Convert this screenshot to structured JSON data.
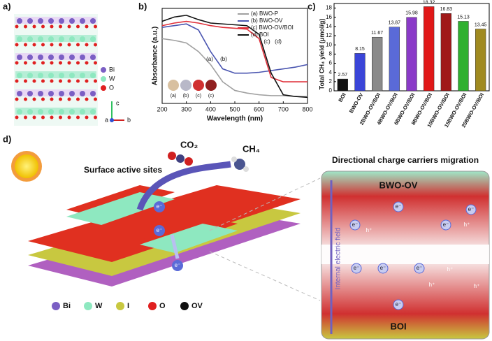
{
  "panel_labels": [
    "a)",
    "b)",
    "c)",
    "d)"
  ],
  "chart_data": [
    {
      "type": "line",
      "xlabel": "Wavelength (nm)",
      "ylabel": "Absorbance (a.u.)",
      "x": [
        200,
        250,
        300,
        350,
        400,
        450,
        500,
        550,
        600,
        650,
        700,
        750,
        800
      ],
      "xlim": [
        200,
        800
      ],
      "xticks": [
        200,
        300,
        400,
        500,
        600,
        700,
        800
      ],
      "ylim": [
        0,
        1.1
      ],
      "legend": "upper right",
      "series": [
        {
          "name": "(a) BWO-P",
          "color": "#a0a0a0",
          "values": [
            0.75,
            0.73,
            0.7,
            0.6,
            0.45,
            0.25,
            0.15,
            0.12,
            0.1,
            0.09,
            0.09,
            0.08,
            0.08
          ]
        },
        {
          "name": "(b) BWO-OV",
          "color": "#4a55b0",
          "values": [
            0.88,
            0.9,
            0.92,
            0.85,
            0.6,
            0.4,
            0.35,
            0.35,
            0.36,
            0.38,
            0.4,
            0.42,
            0.45
          ]
        },
        {
          "name": "(c) BWO-OV/BOI",
          "color": "#e0303a",
          "values": [
            0.9,
            0.93,
            0.95,
            0.93,
            0.9,
            0.88,
            0.87,
            0.86,
            0.75,
            0.3,
            0.25,
            0.25,
            0.25
          ]
        },
        {
          "name": "(d) BOI",
          "color": "#111111",
          "values": [
            0.95,
            1.0,
            1.02,
            0.97,
            0.93,
            0.92,
            0.91,
            0.9,
            0.8,
            0.35,
            0.1,
            0.08,
            0.07
          ]
        }
      ],
      "curve_labels": [
        "(a)",
        "(b)",
        "(c)",
        "(d)"
      ],
      "inset_labels": [
        "(a)",
        "(b)",
        "(c)",
        "(c)"
      ]
    },
    {
      "type": "bar",
      "ylabel": "Total CH₄ yield (μmol/g)",
      "categories": [
        "BOI",
        "BWO-OV",
        "2BWO-OV/BOI",
        "4BWO-OV/BOI",
        "6BWO-OV/BOI",
        "8BWO-OV/BOI",
        "10BWO-OV/BOI",
        "15BWO-OV/BOI",
        "20BWO-OV/BOI"
      ],
      "values": [
        2.57,
        8.15,
        11.67,
        13.87,
        15.98,
        18.32,
        16.83,
        15.13,
        13.45
      ],
      "colors": [
        "#111111",
        "#3a45d8",
        "#8a8a8a",
        "#5a6ad8",
        "#8a3ac8",
        "#e01818",
        "#a01818",
        "#30b030",
        "#a08a20"
      ],
      "ylim": [
        0,
        19
      ],
      "yticks": [
        0,
        2,
        4,
        6,
        8,
        10,
        12,
        14,
        16,
        18
      ]
    }
  ],
  "structure": {
    "legend": [
      "Bi",
      "W",
      "O"
    ],
    "axes": [
      "c",
      "a",
      "b"
    ]
  },
  "scheme": {
    "molecules": [
      "CO₂",
      "CH₄"
    ],
    "callout": "Surface active sites",
    "carriers": [
      "e⁻",
      "e⁻",
      "e⁻"
    ],
    "legend": [
      "Bi",
      "W",
      "I",
      "O",
      "OV"
    ]
  },
  "zoom": {
    "title": "Directional charge carriers migration",
    "top": "BWO-OV",
    "bottom": "BOI",
    "field": "Internal electric field",
    "charges": [
      "e⁻",
      "e⁻",
      "h⁺",
      "e⁻",
      "h⁺",
      "e⁻",
      "e⁻",
      "e⁻",
      "e⁻",
      "h⁺",
      "e⁻",
      "h⁺",
      "h⁺"
    ]
  }
}
